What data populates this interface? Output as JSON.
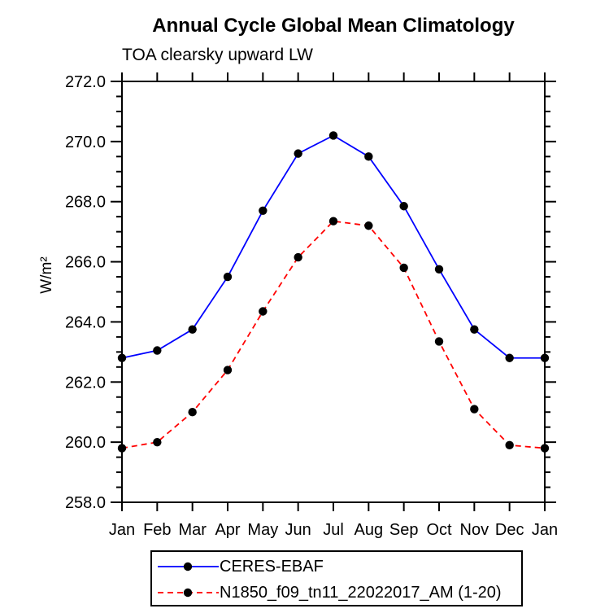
{
  "title": "Annual Cycle Global Mean Climatology",
  "subtitle": "TOA clearsky upward LW",
  "y_axis_title": "W/m²",
  "chart_data": {
    "type": "line",
    "title": "Annual Cycle Global Mean Climatology",
    "subtitle": "TOA clearsky upward LW",
    "ylabel": "W/m²",
    "xlabel": "",
    "categories": [
      "Jan",
      "Feb",
      "Mar",
      "Apr",
      "May",
      "Jun",
      "Jul",
      "Aug",
      "Sep",
      "Oct",
      "Nov",
      "Dec",
      "Jan"
    ],
    "ylim": [
      258.0,
      272.0
    ],
    "y_major_step": 2.0,
    "y_minor_step": 0.5,
    "y_tick_labels": [
      "258.0",
      "260.0",
      "262.0",
      "264.0",
      "266.0",
      "268.0",
      "270.0",
      "272.0"
    ],
    "grid": false,
    "legend_position": "bottom-center",
    "frame_color": "#000000",
    "series": [
      {
        "name": "CERES-EBAF",
        "color": "#0000ff",
        "line_style": "solid",
        "dash": "none",
        "marker": "filled-circle",
        "marker_color": "#000000",
        "values": [
          262.8,
          263.05,
          263.75,
          265.5,
          267.7,
          269.6,
          270.2,
          269.5,
          267.85,
          265.75,
          263.75,
          262.8,
          262.8
        ]
      },
      {
        "name": "N1850_f09_tn11_22022017_AM (1-20)",
        "color": "#ff0000",
        "line_style": "dashed",
        "dash": "7 5",
        "marker": "filled-circle",
        "marker_color": "#000000",
        "values": [
          259.8,
          260.0,
          261.0,
          262.4,
          264.35,
          266.15,
          267.35,
          267.2,
          265.8,
          263.35,
          261.1,
          259.9,
          259.8
        ]
      }
    ]
  }
}
